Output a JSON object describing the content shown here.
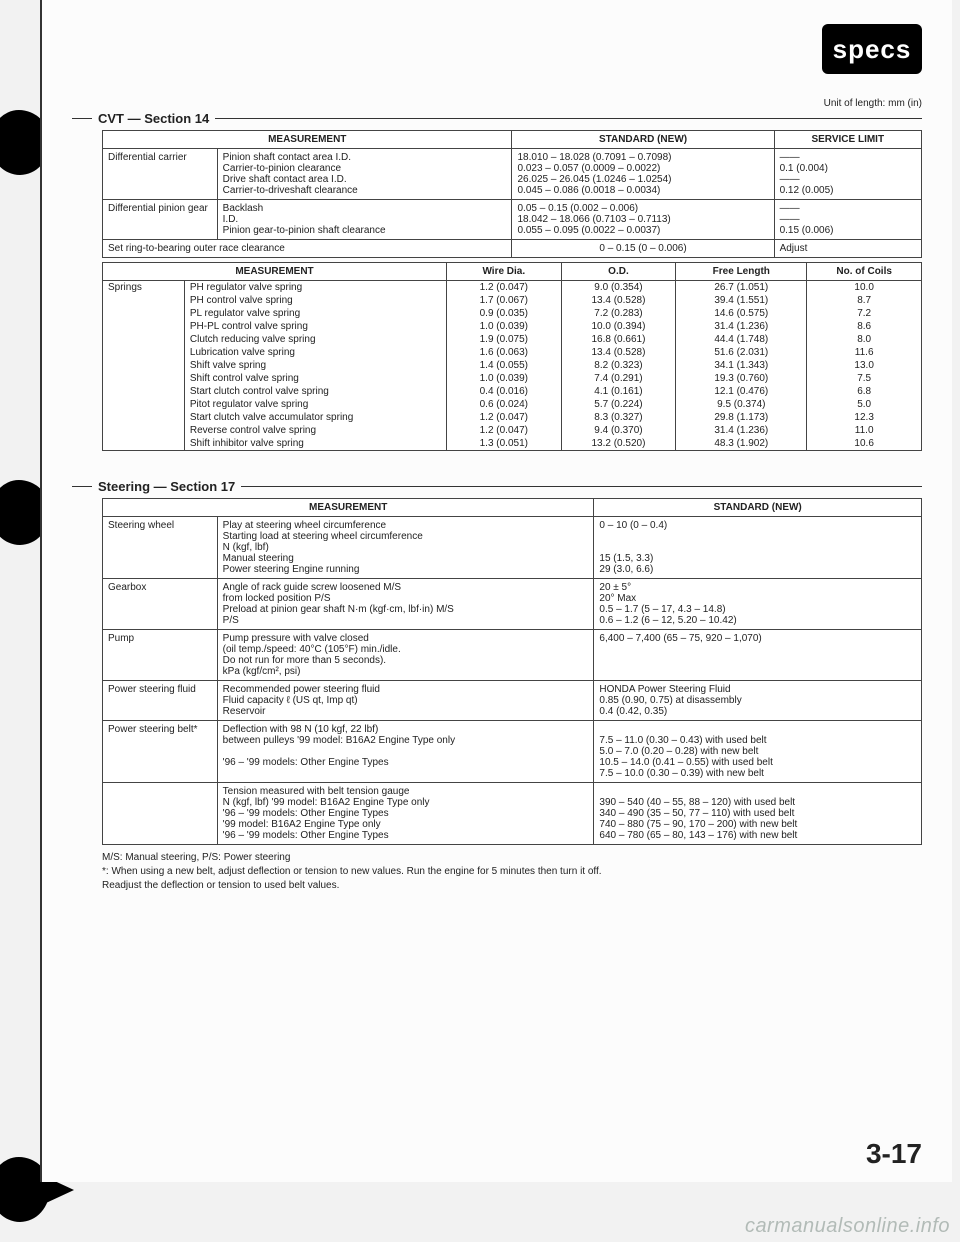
{
  "badge": "specs",
  "unit_note": "Unit of length: mm (in)",
  "page_number": "3-17",
  "watermark": "carmanualsonline.info",
  "cvt": {
    "title": "CVT — Section 14",
    "headers": {
      "meas": "MEASUREMENT",
      "std": "STANDARD (NEW)",
      "svc": "SERVICE LIMIT"
    },
    "rows1": [
      {
        "item": "Differential carrier",
        "meas": "Pinion shaft contact area I.D.\nCarrier-to-pinion clearance\nDrive shaft contact area I.D.\nCarrier-to-driveshaft clearance",
        "std": "18.010 – 18.028 (0.7091 – 0.7098)\n0.023 – 0.057 (0.0009 – 0.0022)\n26.025 – 26.045 (1.0246 – 1.0254)\n0.045 – 0.086 (0.0018 – 0.0034)",
        "svc": "——\n0.1 (0.004)\n——\n0.12 (0.005)"
      },
      {
        "item": "Differential pinion gear",
        "meas": "Backlash\nI.D.\nPinion gear-to-pinion shaft clearance",
        "std": "0.05 – 0.15 (0.002 – 0.006)\n18.042 – 18.066 (0.7103 – 0.7113)\n0.055 – 0.095 (0.0022 – 0.0037)",
        "svc": "——\n——\n0.15 (0.006)"
      }
    ],
    "set_ring": {
      "meas": "Set ring-to-bearing outer race clearance",
      "std": "0 – 0.15 (0 – 0.006)",
      "svc": "Adjust"
    },
    "springs_hdr": {
      "meas": "MEASUREMENT",
      "wire": "Wire Dia.",
      "od": "O.D.",
      "free": "Free Length",
      "coils": "No. of Coils"
    },
    "springs_item": "Springs",
    "springs": [
      {
        "n": "PH regulator valve spring",
        "w": "1.2 (0.047)",
        "o": "9.0 (0.354)",
        "f": "26.7 (1.051)",
        "c": "10.0"
      },
      {
        "n": "PH control valve spring",
        "w": "1.7 (0.067)",
        "o": "13.4 (0.528)",
        "f": "39.4 (1.551)",
        "c": "8.7"
      },
      {
        "n": "PL regulator valve spring",
        "w": "0.9 (0.035)",
        "o": "7.2 (0.283)",
        "f": "14.6 (0.575)",
        "c": "7.2"
      },
      {
        "n": "PH-PL control valve spring",
        "w": "1.0 (0.039)",
        "o": "10.0 (0.394)",
        "f": "31.4 (1.236)",
        "c": "8.6"
      },
      {
        "n": "Clutch reducing valve spring",
        "w": "1.9 (0.075)",
        "o": "16.8 (0.661)",
        "f": "44.4 (1.748)",
        "c": "8.0"
      },
      {
        "n": "Lubrication valve spring",
        "w": "1.6 (0.063)",
        "o": "13.4 (0.528)",
        "f": "51.6 (2.031)",
        "c": "11.6"
      },
      {
        "n": "Shift valve spring",
        "w": "1.4 (0.055)",
        "o": "8.2 (0.323)",
        "f": "34.1 (1.343)",
        "c": "13.0"
      },
      {
        "n": "Shift control valve spring",
        "w": "1.0 (0.039)",
        "o": "7.4 (0.291)",
        "f": "19.3 (0.760)",
        "c": "7.5"
      },
      {
        "n": "Start clutch control valve spring",
        "w": "0.4 (0.016)",
        "o": "4.1 (0.161)",
        "f": "12.1 (0.476)",
        "c": "6.8"
      },
      {
        "n": "Pitot regulator valve spring",
        "w": "0.6 (0.024)",
        "o": "5.7 (0.224)",
        "f": "9.5 (0.374)",
        "c": "5.0"
      },
      {
        "n": "Start clutch valve accumulator spring",
        "w": "1.2 (0.047)",
        "o": "8.3 (0.327)",
        "f": "29.8 (1.173)",
        "c": "12.3"
      },
      {
        "n": "Reverse control valve spring",
        "w": "1.2 (0.047)",
        "o": "9.4 (0.370)",
        "f": "31.4 (1.236)",
        "c": "11.0"
      },
      {
        "n": "Shift inhibitor valve spring",
        "w": "1.3 (0.051)",
        "o": "13.2 (0.520)",
        "f": "48.3 (1.902)",
        "c": "10.6"
      }
    ]
  },
  "steering": {
    "title": "Steering — Section 17",
    "headers": {
      "meas": "MEASUREMENT",
      "std": "STANDARD (NEW)"
    },
    "rows": [
      {
        "item": "Steering wheel",
        "meas": "Play at steering wheel circumference\nStarting load at steering wheel circumference\nN (kgf, lbf)\n    Manual steering\n    Power steering                          Engine running",
        "std": "0 – 10 (0 – 0.4)\n\n\n15 (1.5, 3.3)\n29 (3.0, 6.6)"
      },
      {
        "item": "Gearbox",
        "meas": "Angle of rack guide screw loosened              M/S\nfrom locked position                                        P/S\nPreload at pinion gear shaft N·m (kgf·cm, lbf·in)  M/S\n                                                                          P/S",
        "std": "20 ± 5°\n20° Max\n0.5 – 1.7 (5 – 17, 4.3 – 14.8)\n0.6 – 1.2 (6 – 12, 5.20 – 10.42)"
      },
      {
        "item": "Pump",
        "meas": "Pump pressure with valve closed\n(oil temp./speed: 40°C (105°F) min./idle.\nDo not run for more than 5 seconds).\nkPa (kgf/cm², psi)",
        "std": "6,400 – 7,400 (65 – 75, 920 – 1,070)"
      },
      {
        "item": "Power steering fluid",
        "meas": "Recommended power steering fluid\nFluid capacity   ℓ (US qt, Imp qt)\n                                                        Reservoir",
        "std": "HONDA Power Steering Fluid\n0.85 (0.90, 0.75) at disassembly\n0.4 (0.42, 0.35)"
      },
      {
        "item": "Power steering belt*",
        "meas": "Deflection with 98 N (10 kgf, 22 lbf)\nbetween pulleys '99 model: B16A2 Engine Type only\n\n                    '96 – '99 models: Other Engine Types",
        "std": "\n7.5 – 11.0 (0.30 – 0.43) with used belt\n5.0 – 7.0 (0.20 – 0.28) with new belt\n10.5 – 14.0 (0.41 – 0.55) with used belt\n7.5 – 10.0 (0.30 – 0.39) with new belt"
      },
      {
        "item": "",
        "meas": "Tension measured with belt tension gauge\nN (kgf, lbf)  '99 model:           B16A2 Engine Type only\n                 '96 – '99 models: Other Engine Types\n                 '99 model:           B16A2 Engine Type only\n                 '96 – '99 models: Other Engine Types",
        "std": "\n390 – 540 (40 – 55, 88 – 120) with used belt\n340 – 490 (35 – 50, 77 – 110) with used belt\n740 – 880 (75 – 90, 170 – 200) with new belt\n640 – 780 (65 – 80, 143 – 176) with new belt"
      }
    ]
  },
  "footnotes": "M/S: Manual steering, P/S: Power steering\n*: When using a new belt, adjust deflection or tension to new values. Run the engine for 5 minutes then turn it off.\n   Readjust the deflection or tension to used belt values."
}
